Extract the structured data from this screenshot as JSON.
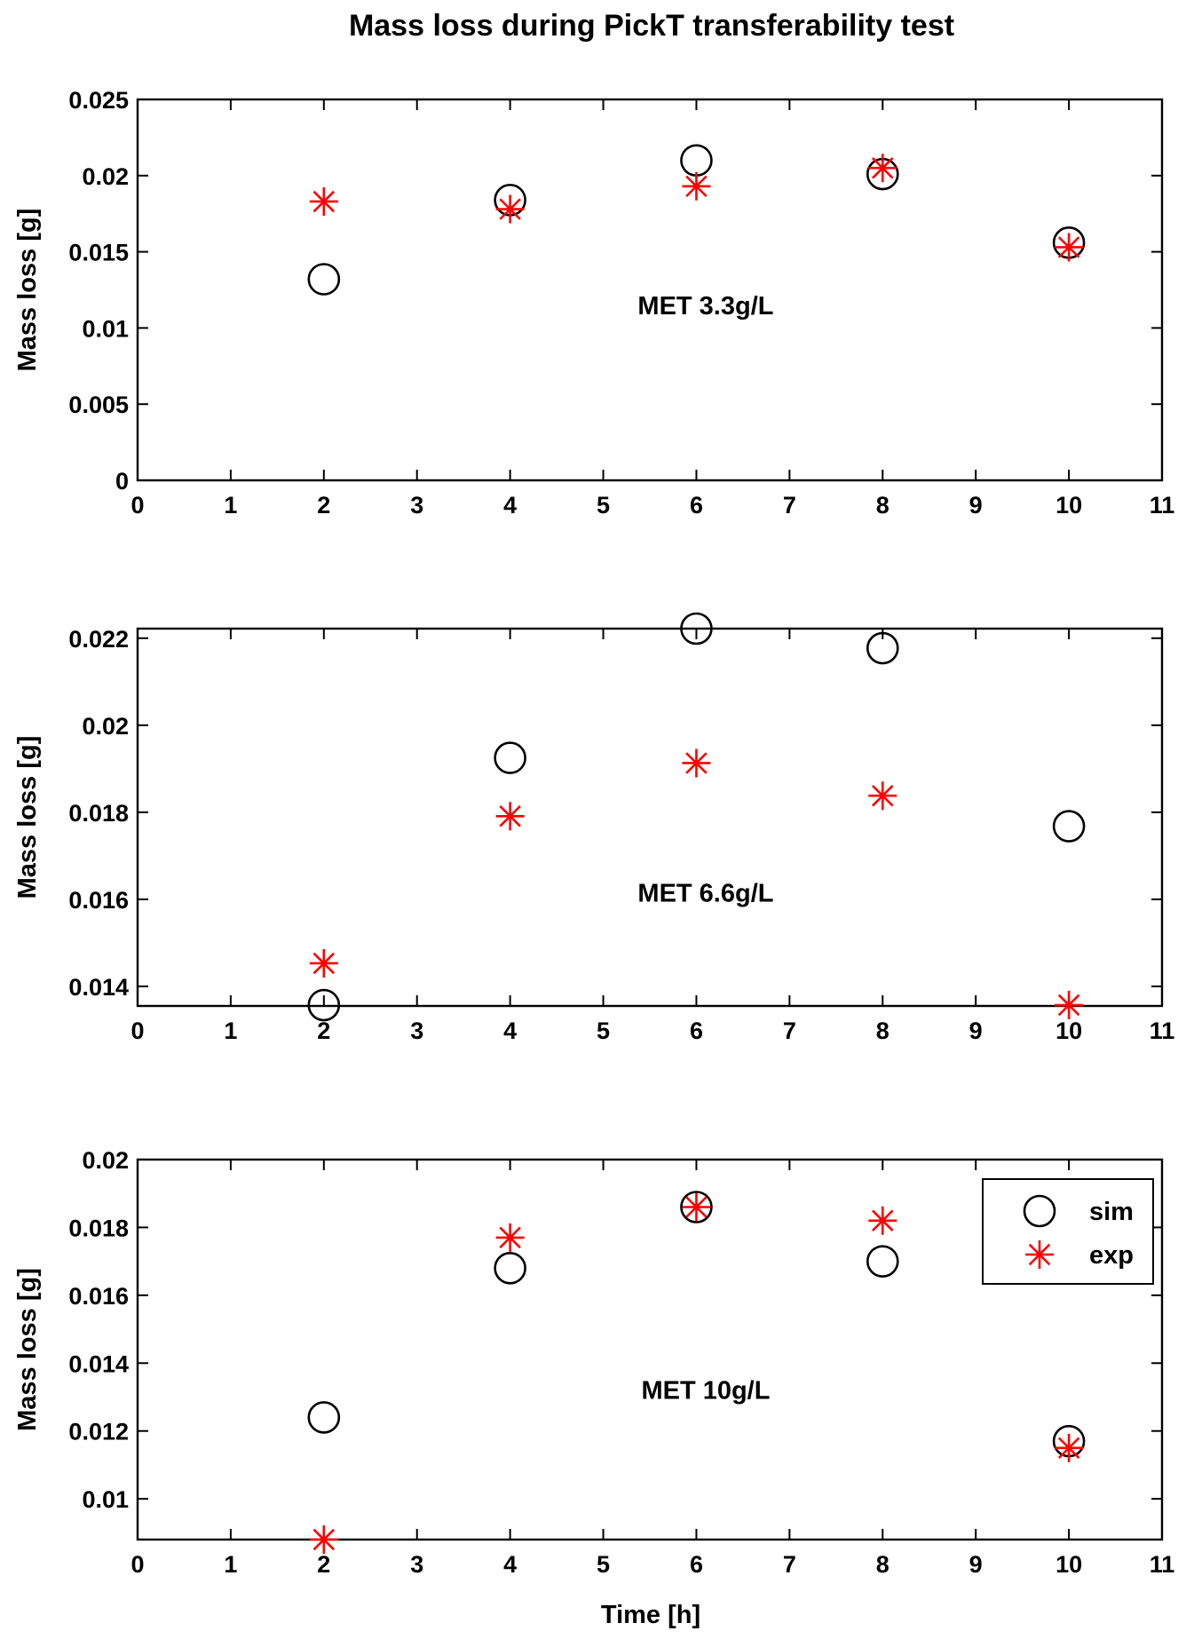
{
  "figure_title": "Mass loss during PickT transferability test",
  "x_axis_label": "Time [h]",
  "colors": {
    "sim": "#000000",
    "exp": "#ff0000",
    "axes": "#000000",
    "background": "#ffffff"
  },
  "legend": {
    "placement": "top-right",
    "entries": [
      {
        "label": "sim",
        "marker": "open-circle"
      },
      {
        "label": "exp",
        "marker": "asterisk"
      }
    ]
  },
  "chart_data": [
    {
      "type": "scatter",
      "annotation": "MET 3.3g/L",
      "ylabel": "Mass loss [g]",
      "xlim": [
        0,
        11
      ],
      "ylim": [
        0,
        0.025
      ],
      "xticks": [
        "0",
        "1",
        "2",
        "3",
        "4",
        "5",
        "6",
        "7",
        "8",
        "9",
        "10",
        "11"
      ],
      "yticks": [
        "0",
        "0.005",
        "0.01",
        "0.015",
        "0.02",
        "0.025"
      ],
      "x": [
        2,
        4,
        6,
        8,
        10
      ],
      "series": [
        {
          "name": "sim",
          "values": [
            0.0132,
            0.0184,
            0.021,
            0.0201,
            0.0156
          ]
        },
        {
          "name": "exp",
          "values": [
            0.0183,
            0.0178,
            0.0193,
            0.0205,
            0.0153
          ]
        }
      ]
    },
    {
      "type": "scatter",
      "annotation": "MET 6.6g/L",
      "ylabel": "Mass loss [g]",
      "xlim": [
        0,
        11
      ],
      "ylim": [
        0.01355,
        0.02222
      ],
      "xticks": [
        "0",
        "1",
        "2",
        "3",
        "4",
        "5",
        "6",
        "7",
        "8",
        "9",
        "10",
        "11"
      ],
      "yticks": [
        "0.014",
        "0.016",
        "0.018",
        "0.02",
        "0.022"
      ],
      "x": [
        2,
        4,
        6,
        8,
        10
      ],
      "series": [
        {
          "name": "sim",
          "values": [
            0.01357,
            0.01925,
            0.02222,
            0.02177,
            0.01768
          ]
        },
        {
          "name": "exp",
          "values": [
            0.01453,
            0.01791,
            0.01913,
            0.01838,
            0.01357
          ]
        }
      ]
    },
    {
      "type": "scatter",
      "annotation": "MET 10g/L",
      "ylabel": "Mass loss [g]",
      "xlim": [
        0,
        11
      ],
      "ylim": [
        0.0088,
        0.02
      ],
      "xticks": [
        "0",
        "1",
        "2",
        "3",
        "4",
        "5",
        "6",
        "7",
        "8",
        "9",
        "10",
        "11"
      ],
      "yticks": [
        "0.01",
        "0.012",
        "0.014",
        "0.016",
        "0.018",
        "0.02"
      ],
      "x": [
        2,
        4,
        6,
        8,
        10
      ],
      "series": [
        {
          "name": "sim",
          "values": [
            0.0124,
            0.0168,
            0.0186,
            0.017,
            0.0117
          ]
        },
        {
          "name": "exp",
          "values": [
            0.0088,
            0.0177,
            0.0186,
            0.0182,
            0.0115
          ]
        }
      ]
    }
  ]
}
